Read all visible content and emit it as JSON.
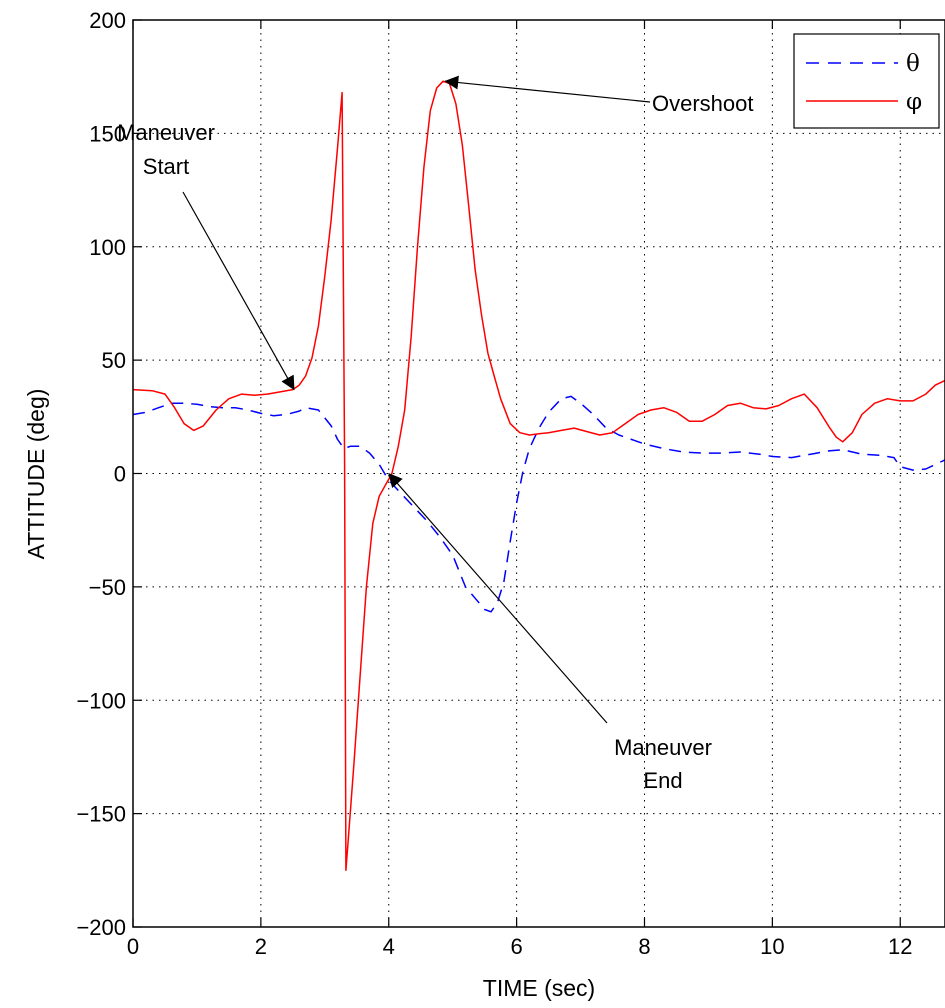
{
  "chart_data": {
    "type": "line",
    "xlabel": "TIME (sec)",
    "ylabel": "ATTITUDE (deg)",
    "xlim": [
      0,
      12.7
    ],
    "ylim": [
      -200,
      200
    ],
    "xticks": [
      0,
      2,
      4,
      6,
      8,
      10,
      12
    ],
    "yticks": [
      -200,
      -150,
      -100,
      -50,
      0,
      50,
      100,
      150,
      200
    ],
    "xtick_labels": [
      "0",
      "2",
      "4",
      "6",
      "8",
      "10",
      "12"
    ],
    "ytick_labels": [
      "−200",
      "−150",
      "−100",
      "−50",
      "0",
      "50",
      "100",
      "150",
      "200"
    ],
    "grid": true,
    "legend_position": "top-right",
    "series": [
      {
        "name": "θ",
        "color": "#0000ff",
        "style": "dashed",
        "x": [
          0,
          0.2,
          0.4,
          0.6,
          0.8,
          1.0,
          1.2,
          1.4,
          1.6,
          1.8,
          2.0,
          2.2,
          2.4,
          2.6,
          2.7,
          2.9,
          3.1,
          3.2,
          3.3,
          3.4,
          3.55,
          3.7,
          3.85,
          4.0,
          4.2,
          4.4,
          4.6,
          4.8,
          5.0,
          5.2,
          5.35,
          5.5,
          5.6,
          5.7,
          5.8,
          5.9,
          6.0,
          6.1,
          6.2,
          6.35,
          6.5,
          6.7,
          6.85,
          7.0,
          7.2,
          7.4,
          7.6,
          7.8,
          8.0,
          8.3,
          8.6,
          8.9,
          9.2,
          9.5,
          9.8,
          10.0,
          10.3,
          10.6,
          10.9,
          11.1,
          11.4,
          11.7,
          11.9,
          12.0,
          12.2,
          12.4,
          12.7
        ],
        "y": [
          26,
          27,
          29,
          31,
          31,
          30.5,
          29.5,
          29,
          29,
          28,
          26.5,
          25.5,
          26,
          27.5,
          29,
          28,
          21,
          15,
          11,
          12,
          12,
          9,
          4,
          -3,
          -9,
          -15,
          -21,
          -28,
          -36,
          -50,
          -55,
          -60,
          -61,
          -57,
          -48,
          -30,
          -13,
          1,
          11,
          20,
          27,
          33,
          34,
          31,
          26,
          20,
          17,
          15,
          13,
          11,
          9.5,
          9,
          9,
          9.5,
          8.5,
          7.5,
          7,
          8.5,
          10,
          10.5,
          8.5,
          8,
          7,
          3,
          1.5,
          2,
          6
        ]
      },
      {
        "name": "φ",
        "color": "#ff0000",
        "style": "solid",
        "x": [
          0,
          0.3,
          0.5,
          0.65,
          0.8,
          0.95,
          1.1,
          1.3,
          1.5,
          1.7,
          1.9,
          2.1,
          2.3,
          2.5,
          2.6,
          2.7,
          2.8,
          2.9,
          3.0,
          3.1,
          3.2,
          3.27,
          3.31,
          3.33,
          3.37,
          3.45,
          3.55,
          3.65,
          3.75,
          3.85,
          3.95,
          4.05,
          4.15,
          4.25,
          4.35,
          4.45,
          4.55,
          4.65,
          4.75,
          4.85,
          4.95,
          5.05,
          5.15,
          5.25,
          5.35,
          5.45,
          5.55,
          5.65,
          5.75,
          5.9,
          6.05,
          6.2,
          6.35,
          6.5,
          6.7,
          6.9,
          7.1,
          7.3,
          7.5,
          7.7,
          7.9,
          8.1,
          8.3,
          8.5,
          8.7,
          8.9,
          9.1,
          9.3,
          9.5,
          9.7,
          9.9,
          10.1,
          10.3,
          10.5,
          10.7,
          10.9,
          11.0,
          11.1,
          11.25,
          11.4,
          11.6,
          11.8,
          12.0,
          12.2,
          12.4,
          12.55,
          12.7
        ],
        "y": [
          37,
          36.5,
          35,
          29,
          22,
          19,
          21,
          28,
          33,
          35,
          34.5,
          35,
          36,
          37,
          39,
          43,
          51,
          65,
          87,
          112,
          144,
          168,
          5,
          -175,
          -160,
          -130,
          -90,
          -50,
          -22,
          -10,
          -5,
          0,
          12,
          28,
          60,
          100,
          135,
          160,
          170,
          173,
          172,
          163,
          145,
          118,
          90,
          70,
          53,
          43,
          33,
          22,
          18,
          17,
          17.5,
          18,
          19,
          20,
          18.5,
          17,
          18,
          22,
          26,
          28,
          29,
          27,
          23,
          23,
          26,
          30,
          31,
          29,
          28.5,
          30,
          33,
          35,
          29,
          20,
          16,
          14,
          18,
          26,
          31,
          33,
          32,
          32,
          35,
          39,
          41
        ]
      }
    ],
    "annotations": [
      {
        "text_lines": [
          "Maneuver",
          "Start"
        ],
        "x": 2.52,
        "y": 37
      },
      {
        "text_lines": [
          "Overshoot"
        ],
        "x": 4.88,
        "y": 173
      },
      {
        "text_lines": [
          "Maneuver",
          "End"
        ],
        "x": 4.0,
        "y": 0
      }
    ]
  }
}
